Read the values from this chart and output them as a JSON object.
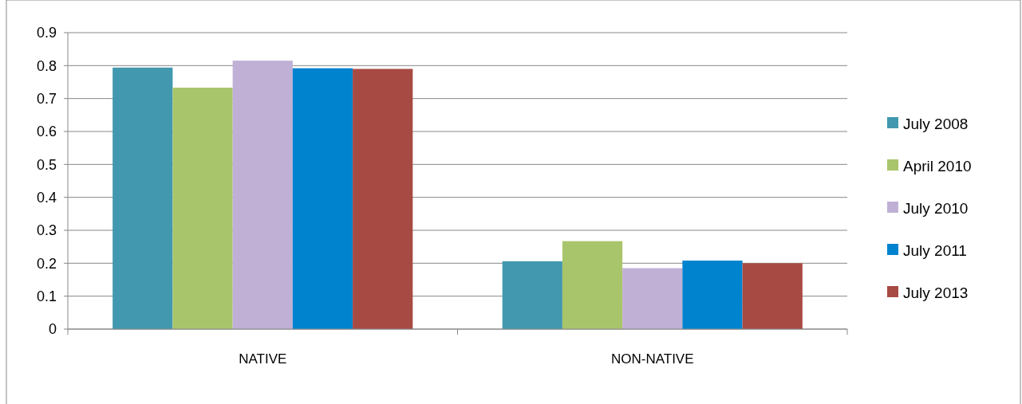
{
  "chart_data": {
    "type": "bar",
    "categories": [
      "NATIVE",
      "NON-NATIVE"
    ],
    "series": [
      {
        "name": "July 2008",
        "color": "#4198af",
        "values": [
          0.794,
          0.206
        ]
      },
      {
        "name": "April 2010",
        "color": "#a9c56b",
        "values": [
          0.733,
          0.267
        ]
      },
      {
        "name": "July 2010",
        "color": "#c0b0d5",
        "values": [
          0.815,
          0.185
        ]
      },
      {
        "name": "July 2011",
        "color": "#0083cf",
        "values": [
          0.792,
          0.208
        ]
      },
      {
        "name": "July 2013",
        "color": "#a84a44",
        "values": [
          0.79,
          0.2
        ]
      }
    ],
    "ylim": [
      0,
      0.9
    ],
    "yticks": [
      0,
      0.1,
      0.2,
      0.3,
      0.4,
      0.5,
      0.6,
      0.7,
      0.8,
      0.9
    ],
    "grid": "y",
    "legend": "right"
  }
}
